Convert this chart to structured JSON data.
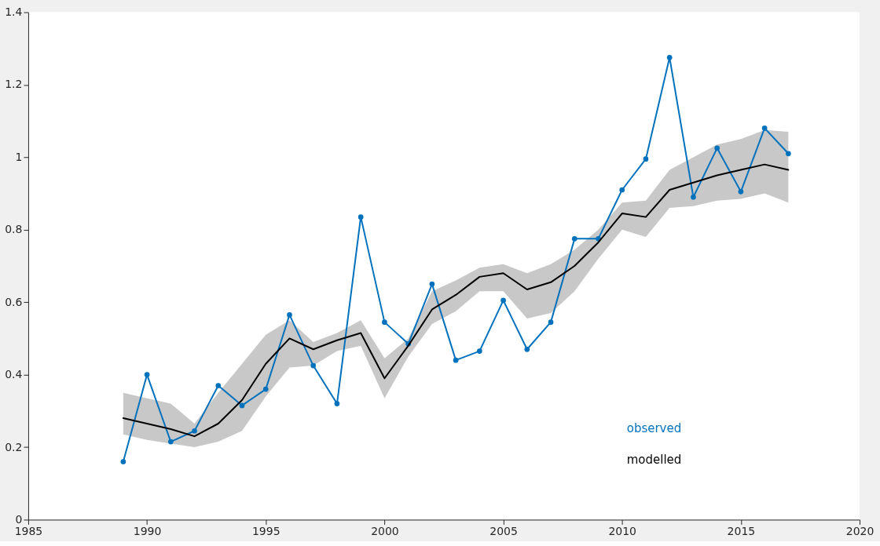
{
  "chart_data": {
    "type": "line",
    "x": [
      1989,
      1990,
      1991,
      1992,
      1993,
      1994,
      1995,
      1996,
      1997,
      1998,
      1999,
      2000,
      2001,
      2002,
      2003,
      2004,
      2005,
      2006,
      2007,
      2008,
      2009,
      2010,
      2011,
      2012,
      2013,
      2014,
      2015,
      2016,
      2017
    ],
    "series": [
      {
        "name": "observed",
        "color": "#0072bd",
        "marker": "circle",
        "values": [
          0.16,
          0.4,
          0.215,
          0.245,
          0.37,
          0.315,
          0.36,
          0.565,
          0.425,
          0.32,
          0.835,
          0.545,
          0.485,
          0.65,
          0.44,
          0.465,
          0.605,
          0.47,
          0.545,
          0.775,
          0.775,
          0.91,
          0.995,
          1.275,
          0.89,
          1.025,
          0.905,
          1.08,
          1.01
        ]
      },
      {
        "name": "modelled",
        "color": "#000000",
        "marker": "none",
        "values": [
          0.28,
          0.265,
          0.25,
          0.23,
          0.265,
          0.33,
          0.43,
          0.5,
          0.47,
          0.495,
          0.515,
          0.39,
          0.48,
          0.58,
          0.62,
          0.67,
          0.68,
          0.635,
          0.655,
          0.7,
          0.765,
          0.845,
          0.835,
          0.91,
          0.93,
          0.95,
          0.965,
          0.98,
          0.965
        ],
        "lower": [
          0.235,
          0.22,
          0.21,
          0.2,
          0.215,
          0.245,
          0.34,
          0.42,
          0.425,
          0.465,
          0.48,
          0.335,
          0.45,
          0.54,
          0.575,
          0.63,
          0.63,
          0.555,
          0.57,
          0.63,
          0.72,
          0.8,
          0.78,
          0.86,
          0.865,
          0.88,
          0.885,
          0.9,
          0.875
        ],
        "upper": [
          0.35,
          0.335,
          0.32,
          0.265,
          0.35,
          0.43,
          0.51,
          0.55,
          0.49,
          0.515,
          0.55,
          0.445,
          0.5,
          0.63,
          0.66,
          0.695,
          0.705,
          0.68,
          0.705,
          0.745,
          0.8,
          0.875,
          0.88,
          0.965,
          1.0,
          1.035,
          1.05,
          1.075,
          1.07
        ]
      }
    ],
    "xlim": [
      1985,
      2020
    ],
    "xticks": [
      1985,
      1990,
      1995,
      2000,
      2005,
      2010,
      2015,
      2020
    ],
    "ylim": [
      0,
      1.4
    ],
    "yticks": [
      0,
      0.2,
      0.4,
      0.6,
      0.8,
      1,
      1.2,
      1.4
    ],
    "grid": false,
    "legend": "bottom right",
    "line_style": "solid"
  }
}
